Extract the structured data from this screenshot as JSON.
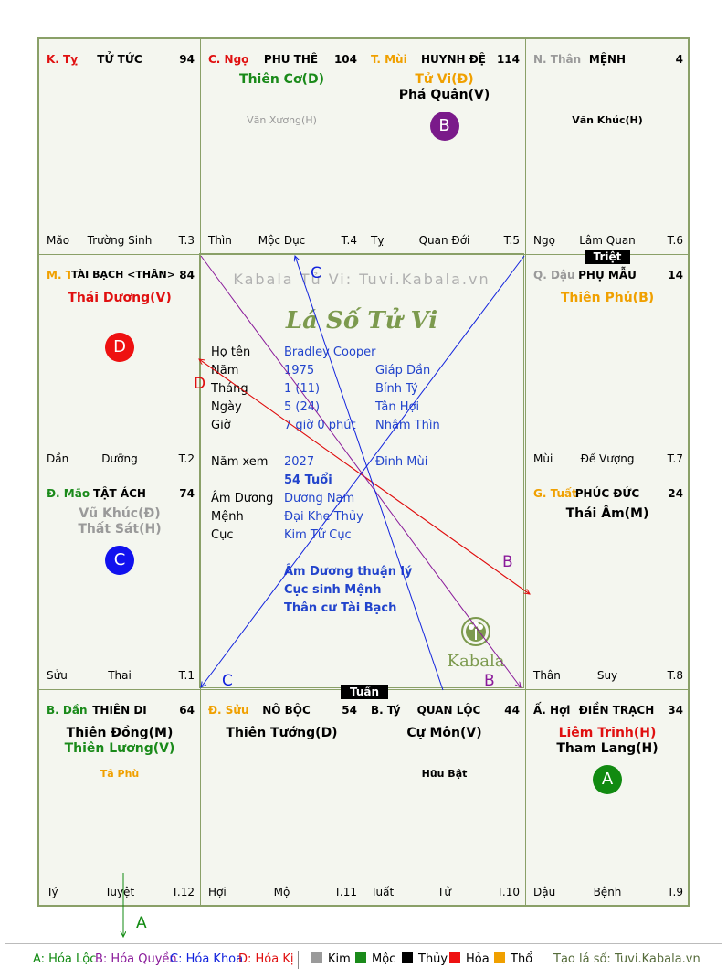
{
  "palaces": [
    {
      "can": "K. Tỵ",
      "can_color": "#e01010",
      "name": "TỬ TỨC",
      "num": "94",
      "foot_left": "Mão",
      "foot_center": "Trường Sinh",
      "foot_right": "T.3",
      "main": [],
      "minor": []
    },
    {
      "can": "C. Ngọ",
      "can_color": "#e01010",
      "name": "PHU THÊ",
      "num": "104",
      "foot_left": "Thìn",
      "foot_center": "Mộc Dục",
      "foot_right": "T.4",
      "main": [
        {
          "text": "Thiên Cơ(D)",
          "cls": "moc"
        }
      ],
      "minor": [
        {
          "text": "Văn Xương(H)",
          "cls": "faded"
        }
      ]
    },
    {
      "can": "T. Mùi",
      "can_color": "#f0a000",
      "name": "HUYNH ĐỆ",
      "num": "114",
      "foot_left": "Tỵ",
      "foot_center": "Quan Đới",
      "foot_right": "T.5",
      "main": [
        {
          "text": "Tử Vi(Đ)",
          "cls": "tho"
        },
        {
          "text": "Phá Quân(V)",
          "cls": "thuy"
        }
      ],
      "minor": []
    },
    {
      "can": "N. Thân",
      "can_color": "#9a9a9a",
      "name": "MỆNH",
      "num": "4",
      "foot_left": "Ngọ",
      "foot_center": "Lâm Quan",
      "foot_right": "T.6",
      "main": [],
      "minor": [
        {
          "text": "Văn Khúc(H)",
          "cls": "thuy"
        }
      ]
    },
    {
      "can": "M. Thìn",
      "can_color": "#f0a000",
      "name": "TÀI BẠCH <THÂN>",
      "num": "84",
      "foot_left": "Dần",
      "foot_center": "Dưỡng",
      "foot_right": "T.2",
      "main": [
        {
          "text": "Thái Dương(V)",
          "cls": "hoa"
        }
      ],
      "minor": []
    },
    {
      "can": "Q. Dậu",
      "can_color": "#9a9a9a",
      "name": "PHỤ MẪU",
      "num": "14",
      "foot_left": "Mùi",
      "foot_center": "Đế Vượng",
      "foot_right": "T.7",
      "main": [
        {
          "text": "Thiên Phủ(B)",
          "cls": "tho"
        }
      ],
      "minor": []
    },
    {
      "can": "Đ. Mão",
      "can_color": "#1a8a1a",
      "name": "TẬT ÁCH",
      "num": "74",
      "foot_left": "Sửu",
      "foot_center": "Thai",
      "foot_right": "T.1",
      "main": [
        {
          "text": "Vũ Khúc(Đ)",
          "cls": "kim"
        },
        {
          "text": "Thất Sát(H)",
          "cls": "kim"
        }
      ],
      "minor": []
    },
    {
      "can": "G. Tuất",
      "can_color": "#f0a000",
      "name": "PHÚC ĐỨC",
      "num": "24",
      "foot_left": "Thân",
      "foot_center": "Suy",
      "foot_right": "T.8",
      "main": [
        {
          "text": "Thái Âm(M)",
          "cls": "thuy"
        }
      ],
      "minor": []
    },
    {
      "can": "B. Dần",
      "can_color": "#1a8a1a",
      "name": "THIÊN DI",
      "num": "64",
      "foot_left": "Tý",
      "foot_center": "Tuyệt",
      "foot_right": "T.12",
      "main": [
        {
          "text": "Thiên Đồng(M)",
          "cls": "thuy"
        },
        {
          "text": "Thiên Lương(V)",
          "cls": "moc"
        }
      ],
      "minor": [
        {
          "text": "Tả Phù",
          "cls": "tho"
        }
      ]
    },
    {
      "can": "Đ. Sửu",
      "can_color": "#f0a000",
      "name": "NÔ BỘC",
      "num": "54",
      "foot_left": "Hợi",
      "foot_center": "Mộ",
      "foot_right": "T.11",
      "main": [
        {
          "text": "Thiên Tướng(D)",
          "cls": "thuy"
        }
      ],
      "minor": []
    },
    {
      "can": "B. Tý",
      "can_color": "#000000",
      "name": "QUAN LỘC",
      "num": "44",
      "foot_left": "Tuất",
      "foot_center": "Tử",
      "foot_right": "T.10",
      "main": [
        {
          "text": "Cự Môn(V)",
          "cls": "thuy"
        }
      ],
      "minor": [
        {
          "text": "Hữu Bật",
          "cls": "thuy"
        }
      ]
    },
    {
      "can": "Ấ. Hợi",
      "can_color": "#000000",
      "name": "ĐIỀN TRẠCH",
      "num": "34",
      "foot_left": "Dậu",
      "foot_center": "Bệnh",
      "foot_right": "T.9",
      "main": [
        {
          "text": "Liêm Trinh(H)",
          "cls": "hoa"
        },
        {
          "text": "Tham Lang(H)",
          "cls": "thuy"
        }
      ],
      "minor": []
    }
  ],
  "tags": {
    "triet": "Triệt",
    "tuan": "Tuần"
  },
  "circles": {
    "a": "A",
    "b": "B",
    "c": "C",
    "d": "D"
  },
  "center": {
    "watermark": "Kabala Tử Vi: Tuvi.Kabala.vn",
    "title": "Lá Số Tử Vi",
    "rows": [
      {
        "label": "Họ tên",
        "v1": "Bradley Cooper",
        "v2": ""
      },
      {
        "label": "Năm",
        "v1": "1975",
        "v2": "Giáp Dần"
      },
      {
        "label": "Tháng",
        "v1": "1  (11)",
        "v2": "Bính Tý"
      },
      {
        "label": "Ngày",
        "v1": "5  (24)",
        "v2": "Tân Hợi"
      },
      {
        "label": "Giờ",
        "v1": "7 giờ 0 phút",
        "v2": "Nhâm Thìn"
      }
    ],
    "nam_xem_label": "Năm xem",
    "nam_xem": "2027",
    "nam_xem_can": "Đinh Mùi",
    "tuoi": "54 Tuổi",
    "rows2": [
      {
        "label": "Âm Dương",
        "v1": "Dương Nam"
      },
      {
        "label": "Mệnh",
        "v1": "Đại Khe Thủy"
      },
      {
        "label": "Cục",
        "v1": "Kim Tứ Cục"
      }
    ],
    "notes": [
      "Âm Dương thuận lý",
      "Cục sinh Mệnh",
      "Thân cư Tài Bạch"
    ],
    "brand": "Kabala"
  },
  "line_labels": {
    "c1": "C",
    "d1": "D",
    "b1": "B",
    "b2": "B",
    "c2": "C",
    "a1": "A"
  },
  "legend": {
    "a": "A: Hóa Lộc",
    "b": "B: Hóa Quyền",
    "c": "C: Hóa Khoa",
    "d": "D: Hóa Kị",
    "kim": "Kim",
    "moc": "Mộc",
    "thuy": "Thủy",
    "hoa": "Hỏa",
    "tho": "Thổ",
    "site": "Tạo lá số: Tuvi.Kabala.vn"
  }
}
